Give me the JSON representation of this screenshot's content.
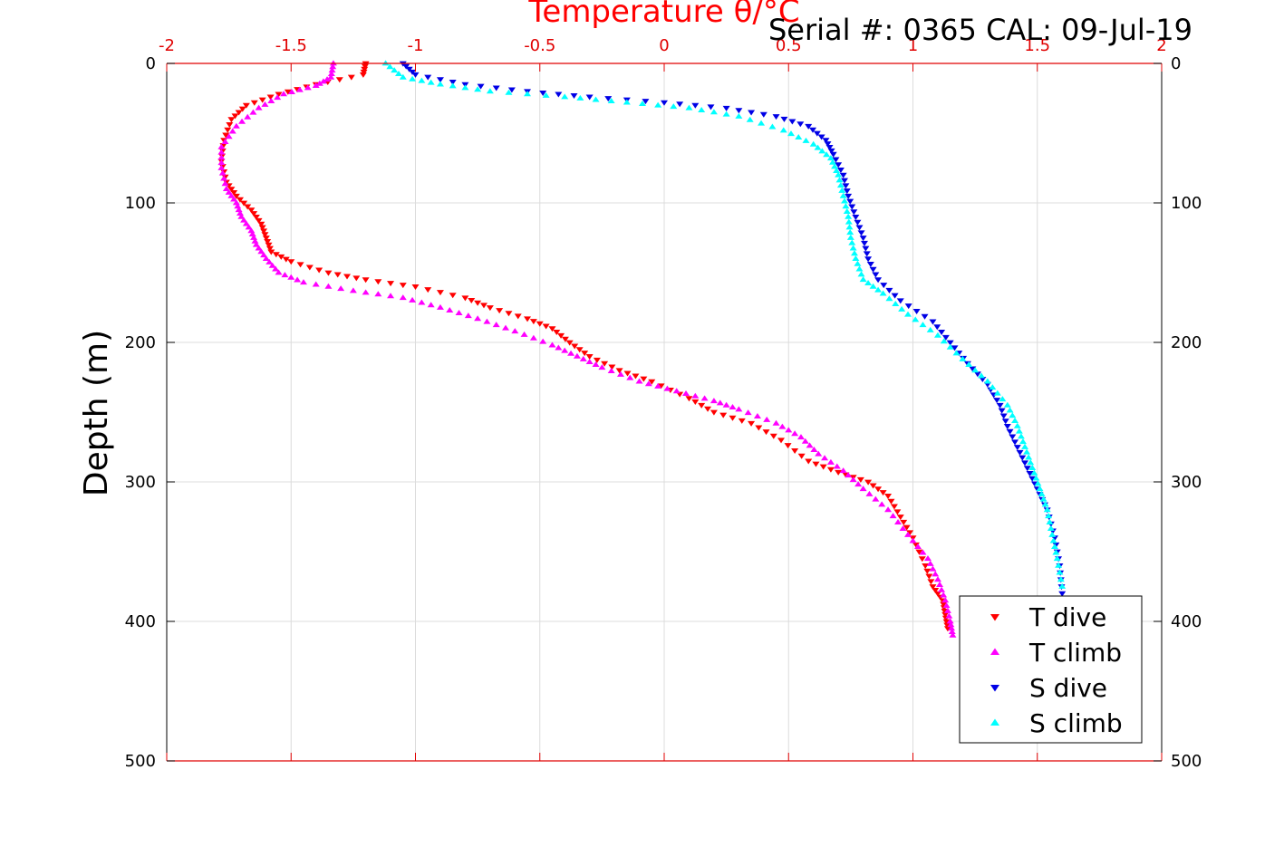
{
  "chart_data": {
    "type": "scatter",
    "title": "Serial #: 0365  CAL: 09-Jul-19",
    "xlabel": "Temperature θ/°C",
    "ylabel": "Depth (m)",
    "xlim": [
      -2,
      2
    ],
    "ylim": [
      0,
      500
    ],
    "y_reversed": true,
    "grid": true,
    "x_axis_position": "top",
    "x_ticks": [
      -2,
      -1.5,
      -1,
      -0.5,
      0,
      0.5,
      1,
      1.5,
      2
    ],
    "x_tick_labels": [
      "-2",
      "-1.5",
      "-1",
      "-0.5",
      "0",
      "0.5",
      "1",
      "1.5",
      "2"
    ],
    "y_ticks": [
      0,
      100,
      200,
      300,
      400,
      500
    ],
    "y_tick_labels": [
      "0",
      "100",
      "200",
      "300",
      "400",
      "500"
    ],
    "axis_color": "#e00000",
    "legend_position": "bottom-right",
    "series": [
      {
        "name": "T dive",
        "color": "#ff0000",
        "marker": "triangle-down",
        "points": [
          [
            -1.2,
            0
          ],
          [
            -1.21,
            8
          ],
          [
            -1.4,
            15
          ],
          [
            -1.55,
            22
          ],
          [
            -1.68,
            30
          ],
          [
            -1.74,
            40
          ],
          [
            -1.77,
            55
          ],
          [
            -1.78,
            70
          ],
          [
            -1.76,
            85
          ],
          [
            -1.72,
            95
          ],
          [
            -1.66,
            105
          ],
          [
            -1.62,
            115
          ],
          [
            -1.6,
            125
          ],
          [
            -1.58,
            135
          ],
          [
            -1.5,
            142
          ],
          [
            -1.35,
            150
          ],
          [
            -1.2,
            155
          ],
          [
            -1.0,
            160
          ],
          [
            -0.8,
            168
          ],
          [
            -0.7,
            175
          ],
          [
            -0.55,
            183
          ],
          [
            -0.45,
            190
          ],
          [
            -0.38,
            200
          ],
          [
            -0.3,
            210
          ],
          [
            -0.18,
            220
          ],
          [
            -0.05,
            228
          ],
          [
            0.1,
            240
          ],
          [
            0.2,
            250
          ],
          [
            0.35,
            258
          ],
          [
            0.47,
            270
          ],
          [
            0.58,
            285
          ],
          [
            0.7,
            293
          ],
          [
            0.82,
            300
          ],
          [
            0.9,
            310
          ],
          [
            0.95,
            325
          ],
          [
            1.0,
            340
          ],
          [
            1.05,
            360
          ],
          [
            1.08,
            375
          ],
          [
            1.12,
            385
          ],
          [
            1.13,
            395
          ],
          [
            1.14,
            405
          ]
        ]
      },
      {
        "name": "T climb",
        "color": "#ff00ff",
        "marker": "triangle-up",
        "points": [
          [
            -1.33,
            0
          ],
          [
            -1.34,
            10
          ],
          [
            -1.4,
            16
          ],
          [
            -1.53,
            22
          ],
          [
            -1.63,
            32
          ],
          [
            -1.72,
            45
          ],
          [
            -1.78,
            60
          ],
          [
            -1.78,
            75
          ],
          [
            -1.76,
            90
          ],
          [
            -1.72,
            100
          ],
          [
            -1.7,
            110
          ],
          [
            -1.66,
            120
          ],
          [
            -1.64,
            130
          ],
          [
            -1.6,
            140
          ],
          [
            -1.55,
            150
          ],
          [
            -1.45,
            157
          ],
          [
            -1.25,
            163
          ],
          [
            -1.05,
            168
          ],
          [
            -0.9,
            175
          ],
          [
            -0.75,
            183
          ],
          [
            -0.6,
            192
          ],
          [
            -0.45,
            202
          ],
          [
            -0.35,
            210
          ],
          [
            -0.25,
            218
          ],
          [
            -0.1,
            228
          ],
          [
            0.05,
            235
          ],
          [
            0.2,
            242
          ],
          [
            0.3,
            248
          ],
          [
            0.45,
            258
          ],
          [
            0.55,
            268
          ],
          [
            0.62,
            280
          ],
          [
            0.72,
            292
          ],
          [
            0.8,
            305
          ],
          [
            0.9,
            320
          ],
          [
            0.98,
            338
          ],
          [
            1.06,
            355
          ],
          [
            1.1,
            370
          ],
          [
            1.13,
            385
          ],
          [
            1.15,
            400
          ],
          [
            1.16,
            410
          ]
        ]
      },
      {
        "name": "S dive",
        "color": "#0000e6",
        "marker": "triangle-down",
        "points": [
          [
            -1.05,
            0
          ],
          [
            -1.0,
            8
          ],
          [
            -0.8,
            15
          ],
          [
            -0.55,
            20
          ],
          [
            -0.3,
            24
          ],
          [
            0.0,
            28
          ],
          [
            0.25,
            32
          ],
          [
            0.45,
            38
          ],
          [
            0.58,
            45
          ],
          [
            0.65,
            55
          ],
          [
            0.68,
            65
          ],
          [
            0.72,
            80
          ],
          [
            0.74,
            95
          ],
          [
            0.77,
            110
          ],
          [
            0.8,
            125
          ],
          [
            0.82,
            140
          ],
          [
            0.86,
            155
          ],
          [
            0.95,
            170
          ],
          [
            1.08,
            185
          ],
          [
            1.15,
            200
          ],
          [
            1.22,
            215
          ],
          [
            1.3,
            230
          ],
          [
            1.35,
            245
          ],
          [
            1.38,
            260
          ],
          [
            1.42,
            275
          ],
          [
            1.46,
            290
          ],
          [
            1.5,
            305
          ],
          [
            1.54,
            320
          ],
          [
            1.57,
            340
          ],
          [
            1.59,
            360
          ],
          [
            1.6,
            380
          ]
        ]
      },
      {
        "name": "S climb",
        "color": "#00ffff",
        "marker": "triangle-up",
        "points": [
          [
            -1.12,
            0
          ],
          [
            -1.05,
            10
          ],
          [
            -0.9,
            15
          ],
          [
            -0.7,
            20
          ],
          [
            -0.4,
            24
          ],
          [
            -0.15,
            28
          ],
          [
            0.1,
            32
          ],
          [
            0.3,
            38
          ],
          [
            0.48,
            48
          ],
          [
            0.6,
            58
          ],
          [
            0.67,
            68
          ],
          [
            0.7,
            80
          ],
          [
            0.72,
            95
          ],
          [
            0.74,
            110
          ],
          [
            0.75,
            125
          ],
          [
            0.77,
            140
          ],
          [
            0.8,
            155
          ],
          [
            0.88,
            165
          ],
          [
            0.98,
            180
          ],
          [
            1.1,
            195
          ],
          [
            1.2,
            212
          ],
          [
            1.3,
            228
          ],
          [
            1.38,
            245
          ],
          [
            1.42,
            260
          ],
          [
            1.45,
            275
          ],
          [
            1.48,
            290
          ],
          [
            1.51,
            305
          ],
          [
            1.54,
            320
          ],
          [
            1.56,
            338
          ],
          [
            1.58,
            355
          ],
          [
            1.6,
            375
          ]
        ]
      }
    ]
  }
}
